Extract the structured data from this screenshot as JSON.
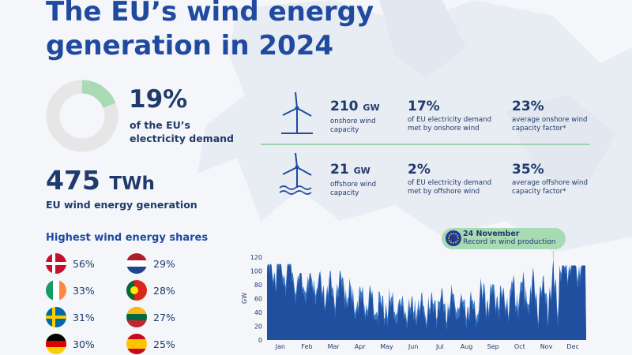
{
  "title": "The EU’s wind energy generation in 2024",
  "demand_share": {
    "value": "19%",
    "label": "of the EU’s electricity demand",
    "fraction": 0.19
  },
  "generation": {
    "value": "475",
    "unit": "TWh",
    "label": "EU wind energy generation"
  },
  "shares": {
    "title": "Highest wind energy shares",
    "items": [
      {
        "flag": "denmark-flag-icon",
        "value": "56%"
      },
      {
        "flag": "ireland-flag-icon",
        "value": "33%"
      },
      {
        "flag": "sweden-flag-icon",
        "value": "31%"
      },
      {
        "flag": "germany-flag-icon",
        "value": "30%"
      },
      {
        "flag": "netherlands-flag-icon",
        "value": "29%"
      },
      {
        "flag": "portugal-flag-icon",
        "value": "28%"
      },
      {
        "flag": "lithuania-flag-icon",
        "value": "27%"
      },
      {
        "flag": "spain-flag-icon",
        "value": "25%"
      }
    ]
  },
  "onshore": {
    "icon": "onshore-wind-turbine-icon",
    "capacity_value": "210",
    "capacity_unit": "GW",
    "capacity_label": "onshore wind capacity",
    "demand_value": "17%",
    "demand_label": "of EU electricity demand met by onshore wind",
    "factor_value": "23%",
    "factor_label": "average onshore wind capacity factor*"
  },
  "offshore": {
    "icon": "offshore-wind-turbine-icon",
    "capacity_value": "21",
    "capacity_unit": "GW",
    "capacity_label": "offshore wind capacity",
    "demand_value": "2%",
    "demand_label": "of EU electricity demand met by offshore wind",
    "factor_value": "35%",
    "factor_label": "average offshore wind capacity factor*"
  },
  "callout": {
    "icon": "eu-flag-icon",
    "date": "24 November",
    "text": "Record in wind production"
  },
  "colors": {
    "title": "#1f4aa0",
    "text": "#1f3a6b",
    "area_dark": "#1f4f9e",
    "area_light": "#3a78c7",
    "accent_green": "#a8dab4",
    "donut_grey": "#e6e6e6"
  },
  "chart_data": {
    "type": "area",
    "title": "",
    "xlabel": "",
    "ylabel": "GW",
    "ylim": [
      0,
      120
    ],
    "yticks": [
      0,
      20,
      40,
      60,
      80,
      100,
      120
    ],
    "categories": [
      "Jan",
      "Feb",
      "Mar",
      "Apr",
      "May",
      "Jun",
      "Jul",
      "Aug",
      "Sep",
      "Oct",
      "Nov",
      "Dec"
    ],
    "series": [
      {
        "values": [
          95,
          75,
          68,
          50,
          40,
          38,
          44,
          42,
          52,
          58,
          60,
          100
        ],
        "peaks": [
          110,
          97,
          100,
          90,
          82,
          73,
          86,
          80,
          90,
          100,
          118,
          108
        ],
        "troughs": [
          30,
          28,
          25,
          18,
          15,
          12,
          14,
          12,
          16,
          20,
          15,
          25
        ]
      }
    ],
    "annotation": {
      "month": "Nov",
      "value": 118
    },
    "grid": false
  }
}
